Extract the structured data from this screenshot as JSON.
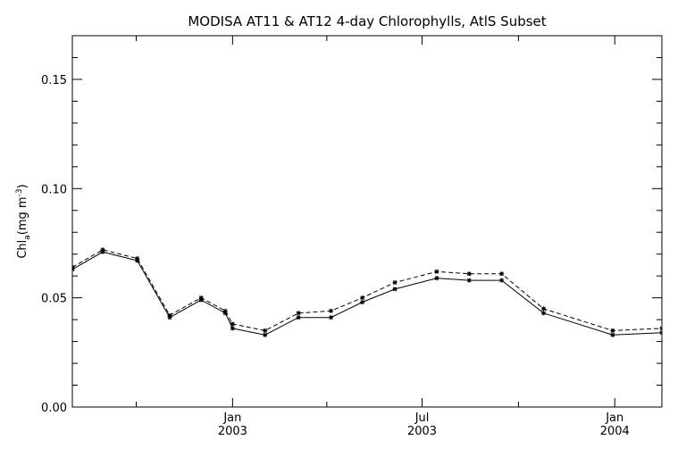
{
  "chart_data": {
    "type": "line",
    "title": "MODISA AT11 & AT12 4-day Chlorophylls, AtlS Subset",
    "xlabel": "",
    "ylabel_main": "Chl",
    "ylabel_sub": "a",
    "ylabel_units": "(mg m",
    "ylabel_sup": "-3",
    "ylabel_close": ")",
    "xlim": [
      "2002-08-01",
      "2004-02-15"
    ],
    "ylim": [
      0.0,
      0.17
    ],
    "yticks": [
      {
        "value": 0.0,
        "label": "0.00"
      },
      {
        "value": 0.05,
        "label": "0.05"
      },
      {
        "value": 0.1,
        "label": "0.10"
      },
      {
        "value": 0.15,
        "label": "0.15"
      }
    ],
    "xticks_labeled": [
      {
        "date": "2003-01-01",
        "month": "Jan",
        "year": "2003"
      },
      {
        "date": "2003-07-01",
        "month": "Jul",
        "year": "2003"
      },
      {
        "date": "2004-01-01",
        "month": "Jan",
        "year": "2004"
      }
    ],
    "xticks_minor": [
      "2002-10-01",
      "2003-04-01",
      "2003-10-01"
    ],
    "grid": false,
    "x": [
      "2002-08-01",
      "2002-08-30",
      "2002-10-02",
      "2002-11-02",
      "2002-12-02",
      "2002-12-25",
      "2003-01-01",
      "2003-02-01",
      "2003-03-05",
      "2003-04-05",
      "2003-05-05",
      "2003-06-05",
      "2003-07-15",
      "2003-08-15",
      "2003-09-15",
      "2003-10-25",
      "2003-12-30",
      "2004-02-15"
    ],
    "series": [
      {
        "style": "solid",
        "values": [
          0.063,
          0.071,
          0.067,
          0.041,
          0.049,
          0.043,
          0.036,
          0.033,
          0.041,
          0.041,
          0.048,
          0.054,
          0.059,
          0.058,
          0.058,
          0.043,
          0.033,
          0.034
        ]
      },
      {
        "style": "dashed",
        "values": [
          0.064,
          0.072,
          0.068,
          0.042,
          0.05,
          0.044,
          0.038,
          0.035,
          0.043,
          0.044,
          0.05,
          0.057,
          0.062,
          0.061,
          0.061,
          0.045,
          0.035,
          0.036
        ]
      }
    ]
  }
}
